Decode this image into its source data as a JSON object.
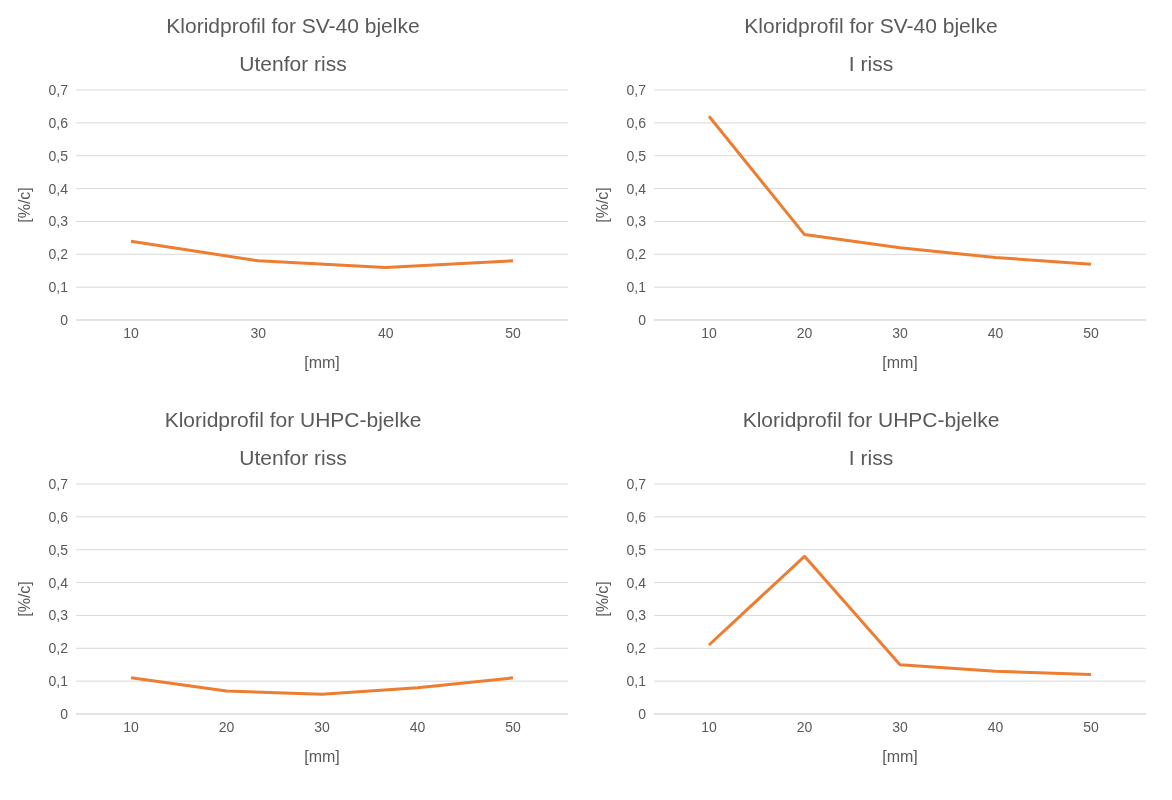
{
  "chart_data": [
    {
      "type": "line",
      "title": "Kloridprofil for SV-40 bjelke",
      "subtitle": "Utenfor riss",
      "xlabel": "[mm]",
      "ylabel": "[%/c]",
      "categories": [
        "10",
        "30",
        "40",
        "50"
      ],
      "series": [
        {
          "color": "#ed7d31",
          "values": [
            0.24,
            0.18,
            0.16,
            0.18
          ]
        }
      ],
      "ylim": [
        0,
        0.7
      ],
      "yticks": [
        {
          "value": 0,
          "label": "0"
        },
        {
          "value": 0.1,
          "label": "0,1"
        },
        {
          "value": 0.2,
          "label": "0,2"
        },
        {
          "value": 0.3,
          "label": "0,3"
        },
        {
          "value": 0.4,
          "label": "0,4"
        },
        {
          "value": 0.5,
          "label": "0,5"
        },
        {
          "value": 0.6,
          "label": "0,6"
        },
        {
          "value": 0.7,
          "label": "0,7"
        }
      ],
      "grid": "y",
      "legend": false
    },
    {
      "type": "line",
      "title": "Kloridprofil for SV-40 bjelke",
      "subtitle": "I riss",
      "xlabel": "[mm]",
      "ylabel": "[%/c]",
      "categories": [
        "10",
        "20",
        "30",
        "40",
        "50"
      ],
      "series": [
        {
          "color": "#ed7d31",
          "values": [
            0.62,
            0.26,
            0.22,
            0.19,
            0.17
          ]
        }
      ],
      "ylim": [
        0,
        0.7
      ],
      "yticks": [
        {
          "value": 0,
          "label": "0"
        },
        {
          "value": 0.1,
          "label": "0,1"
        },
        {
          "value": 0.2,
          "label": "0,2"
        },
        {
          "value": 0.3,
          "label": "0,3"
        },
        {
          "value": 0.4,
          "label": "0,4"
        },
        {
          "value": 0.5,
          "label": "0,5"
        },
        {
          "value": 0.6,
          "label": "0,6"
        },
        {
          "value": 0.7,
          "label": "0,7"
        }
      ],
      "grid": "y",
      "legend": false
    },
    {
      "type": "line",
      "title": "Kloridprofil for UHPC-bjelke",
      "subtitle": "Utenfor riss",
      "xlabel": "[mm]",
      "ylabel": "[%/c]",
      "categories": [
        "10",
        "20",
        "30",
        "40",
        "50"
      ],
      "series": [
        {
          "color": "#ed7d31",
          "values": [
            0.11,
            0.07,
            0.06,
            0.08,
            0.11
          ]
        }
      ],
      "ylim": [
        0,
        0.7
      ],
      "yticks": [
        {
          "value": 0,
          "label": "0"
        },
        {
          "value": 0.1,
          "label": "0,1"
        },
        {
          "value": 0.2,
          "label": "0,2"
        },
        {
          "value": 0.3,
          "label": "0,3"
        },
        {
          "value": 0.4,
          "label": "0,4"
        },
        {
          "value": 0.5,
          "label": "0,5"
        },
        {
          "value": 0.6,
          "label": "0,6"
        },
        {
          "value": 0.7,
          "label": "0,7"
        }
      ],
      "grid": "y",
      "legend": false
    },
    {
      "type": "line",
      "title": "Kloridprofil for UHPC-bjelke",
      "subtitle": "I riss",
      "xlabel": "[mm]",
      "ylabel": "[%/c]",
      "categories": [
        "10",
        "20",
        "30",
        "40",
        "50"
      ],
      "series": [
        {
          "color": "#ed7d31",
          "values": [
            0.21,
            0.48,
            0.15,
            0.13,
            0.12
          ]
        }
      ],
      "ylim": [
        0,
        0.7
      ],
      "yticks": [
        {
          "value": 0,
          "label": "0"
        },
        {
          "value": 0.1,
          "label": "0,1"
        },
        {
          "value": 0.2,
          "label": "0,2"
        },
        {
          "value": 0.3,
          "label": "0,3"
        },
        {
          "value": 0.4,
          "label": "0,4"
        },
        {
          "value": 0.5,
          "label": "0,5"
        },
        {
          "value": 0.6,
          "label": "0,6"
        },
        {
          "value": 0.7,
          "label": "0,7"
        }
      ],
      "grid": "y",
      "legend": false
    }
  ]
}
